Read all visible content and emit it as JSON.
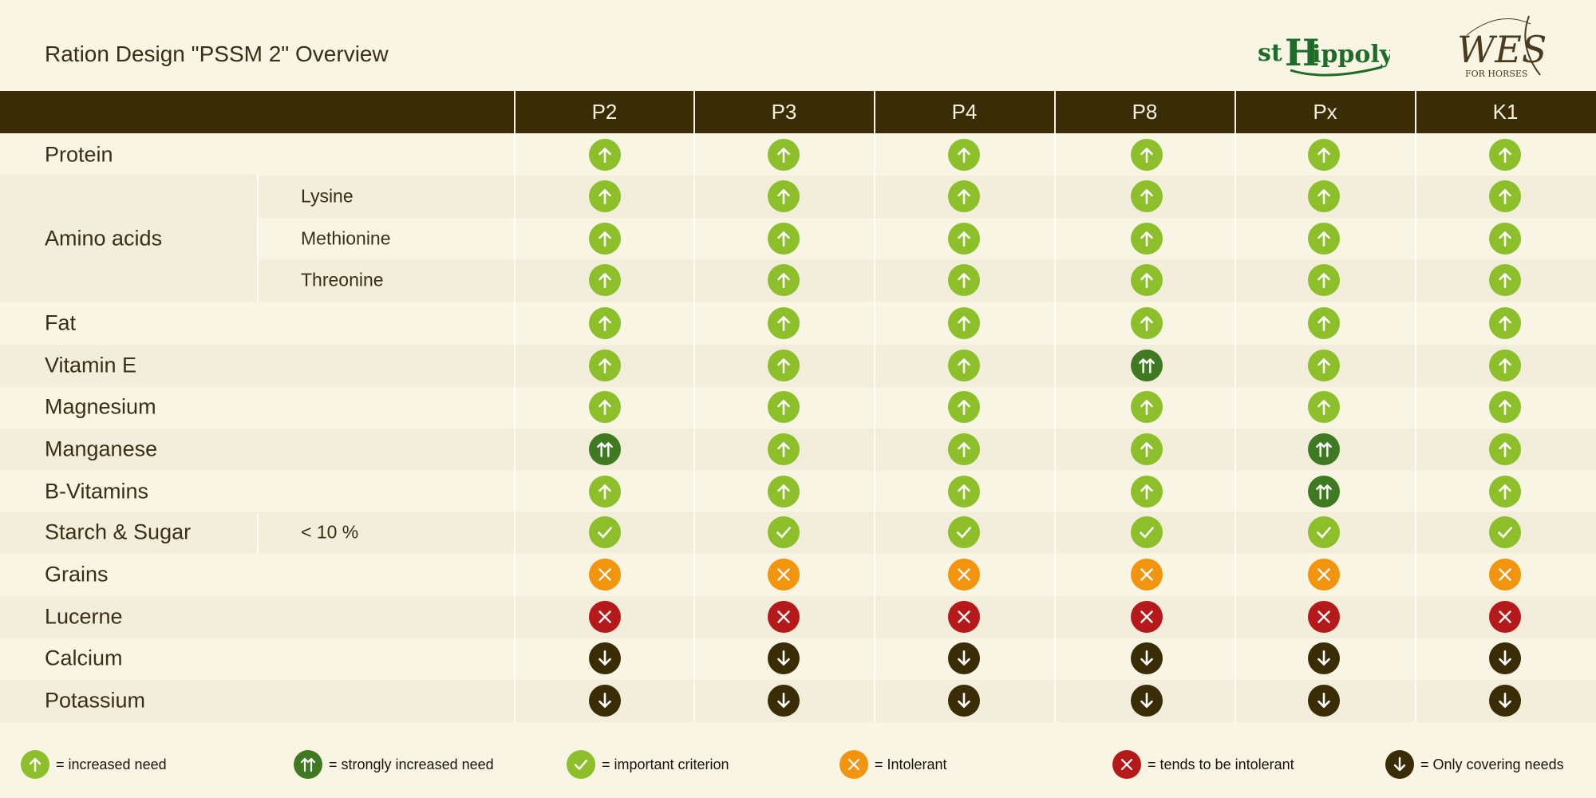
{
  "title": "Ration Design \"PSSM 2\" Overview",
  "logos": {
    "left": "st Hippolyt",
    "right": "WES FOR HORSES"
  },
  "columns": [
    "P2",
    "P3",
    "P4",
    "P8",
    "Px",
    "K1"
  ],
  "rows": [
    {
      "label": "Protein",
      "sub": "",
      "values": [
        "up",
        "up",
        "up",
        "up",
        "up",
        "up"
      ]
    },
    {
      "label": "",
      "sub": "Lysine",
      "values": [
        "up",
        "up",
        "up",
        "up",
        "up",
        "up"
      ]
    },
    {
      "label": "Amino acids",
      "sub": "Methionine",
      "values": [
        "up",
        "up",
        "up",
        "up",
        "up",
        "up"
      ]
    },
    {
      "label": "",
      "sub": "Threonine",
      "values": [
        "up",
        "up",
        "up",
        "up",
        "up",
        "up"
      ]
    },
    {
      "label": "Fat",
      "sub": "",
      "values": [
        "up",
        "up",
        "up",
        "up",
        "up",
        "up"
      ]
    },
    {
      "label": "Vitamin E",
      "sub": "",
      "values": [
        "up",
        "up",
        "up",
        "upup",
        "up",
        "up"
      ]
    },
    {
      "label": "Magnesium",
      "sub": "",
      "values": [
        "up",
        "up",
        "up",
        "up",
        "up",
        "up"
      ]
    },
    {
      "label": "Manganese",
      "sub": "",
      "values": [
        "upup",
        "up",
        "up",
        "up",
        "upup",
        "up"
      ]
    },
    {
      "label": "B-Vitamins",
      "sub": "",
      "values": [
        "up",
        "up",
        "up",
        "up",
        "upup",
        "up"
      ]
    },
    {
      "label": "Starch & Sugar",
      "sub": "< 10 %",
      "values": [
        "check",
        "check",
        "check",
        "check",
        "check",
        "check"
      ]
    },
    {
      "label": "Grains",
      "sub": "",
      "values": [
        "x",
        "x",
        "x",
        "x",
        "x",
        "x"
      ]
    },
    {
      "label": "Lucerne",
      "sub": "",
      "values": [
        "xred",
        "xred",
        "xred",
        "xred",
        "xred",
        "xred"
      ]
    },
    {
      "label": "Calcium",
      "sub": "",
      "values": [
        "down",
        "down",
        "down",
        "down",
        "down",
        "down"
      ]
    },
    {
      "label": "Potassium",
      "sub": "",
      "values": [
        "down",
        "down",
        "down",
        "down",
        "down",
        "down"
      ]
    }
  ],
  "legend": [
    {
      "icon": "up",
      "label": "= increased need"
    },
    {
      "icon": "upup",
      "label": "= strongly increased need"
    },
    {
      "icon": "check",
      "label": "= important criterion"
    },
    {
      "icon": "x",
      "label": "= Intolerant"
    },
    {
      "icon": "xred",
      "label": "= tends to be intolerant"
    },
    {
      "icon": "down",
      "label": "= Only covering needs"
    }
  ],
  "colors": {
    "header_bg": "#3a2c05",
    "increased": "#8cbf2a",
    "strongly_increased": "#3f7a22",
    "intolerant": "#f3940e",
    "tends_intolerant": "#b5191a",
    "covering": "#3a2c05"
  }
}
